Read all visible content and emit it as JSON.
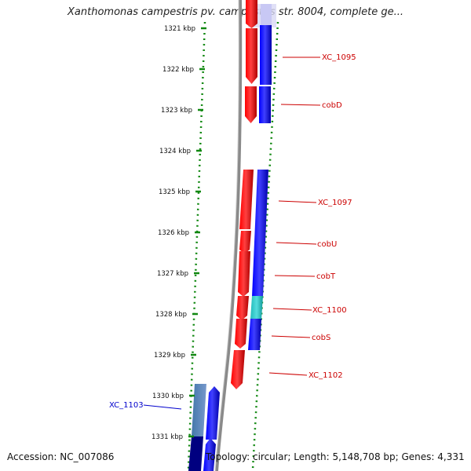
{
  "title": "Xanthomonas campestris pv. campestris str. 8004, complete ge...",
  "footer": {
    "accession": "Accession: NC_007086",
    "summary": "Topology: circular; Length: 5,148,708 bp; Genes: 4,331"
  },
  "ruler": {
    "ticks": [
      "1321 kbp",
      "1322 kbp",
      "1323 kbp",
      "1324 kbp",
      "1325 kbp",
      "1326 kbp",
      "1327 kbp",
      "1328 kbp",
      "1329 kbp",
      "1330 kbp",
      "1331 kbp"
    ]
  },
  "genes": {
    "labels": [
      "XC_1095",
      "cobD",
      "XC_1097",
      "cobU",
      "cobT",
      "XC_1100",
      "cobS",
      "XC_1102",
      "XC_1103"
    ]
  },
  "colors": {
    "cds_red": "#ff0000",
    "cds_blue": "#0000ff",
    "highlight_cyan": "#33cccc",
    "label_red": "#cc0000",
    "label_blue": "#0000cc",
    "ruler_green": "#118811",
    "backbone_gray": "#888888"
  }
}
